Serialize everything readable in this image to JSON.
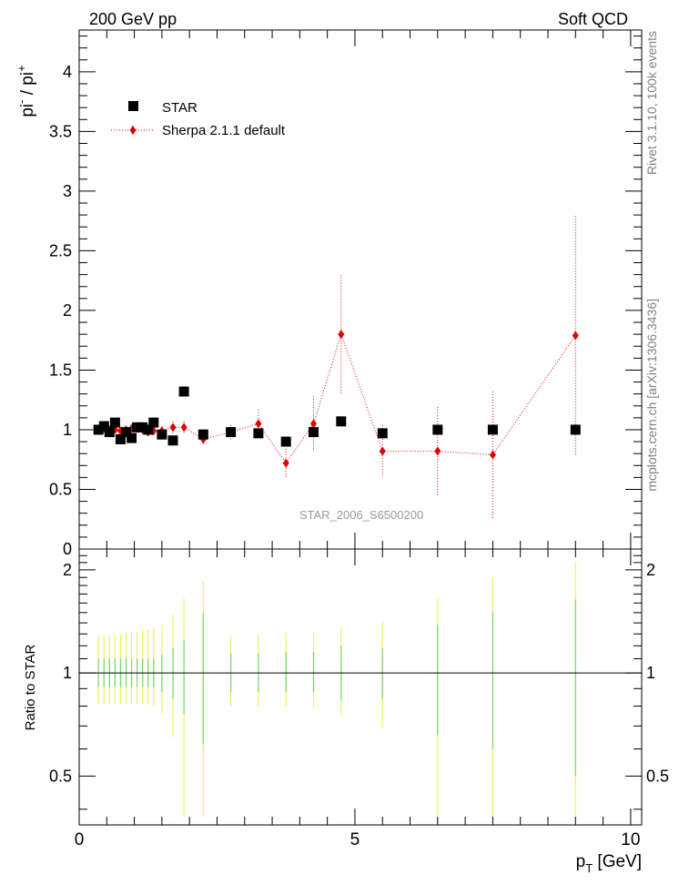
{
  "header": {
    "left": "200 GeV pp",
    "right": "Soft QCD"
  },
  "side_labels": {
    "rivet": "Rivet 3.1.10,  100k events",
    "mcplots": "mcplots.cern.ch [arXiv:1306.3436]"
  },
  "analysis_label": "STAR_2006_S6500200",
  "chart_data": [
    {
      "type": "scatter",
      "title": "",
      "ylabel_main": "pi",
      "ylabel_sup1": "-",
      "ylabel_mid": " / pi",
      "ylabel_sup2": "+",
      "xlim": [
        0,
        10.2
      ],
      "ylim": [
        0,
        4.35
      ],
      "yticks": [
        0,
        0.5,
        1,
        1.5,
        2,
        2.5,
        3,
        3.5,
        4
      ],
      "ytick_labels": [
        "0",
        "0.5",
        "1",
        "1.5",
        "2",
        "2.5",
        "3",
        "3.5",
        "4"
      ],
      "legend": [
        {
          "name": "STAR",
          "marker": "square",
          "color": "#000000"
        },
        {
          "name": "Sherpa 2.1.1 default",
          "marker": "diamond",
          "color": "#e00000"
        }
      ],
      "series": [
        {
          "name": "STAR",
          "x": [
            0.35,
            0.45,
            0.55,
            0.65,
            0.75,
            0.85,
            0.95,
            1.05,
            1.15,
            1.25,
            1.35,
            1.5,
            1.7,
            1.9,
            2.25,
            2.75,
            3.25,
            3.75,
            4.25,
            4.75,
            5.5,
            6.5,
            7.5,
            9.0
          ],
          "values": [
            1.0,
            1.03,
            0.98,
            1.06,
            0.92,
            0.98,
            0.93,
            1.02,
            1.02,
            1.0,
            1.06,
            0.96,
            0.91,
            1.32,
            0.96,
            0.98,
            0.97,
            0.9,
            0.98,
            1.07,
            0.97,
            1.0,
            1.0,
            1.0
          ]
        },
        {
          "name": "Sherpa 2.1.1 default",
          "x": [
            0.35,
            0.45,
            0.55,
            0.65,
            0.75,
            0.85,
            0.95,
            1.05,
            1.15,
            1.25,
            1.35,
            1.5,
            1.7,
            1.9,
            2.25,
            2.75,
            3.25,
            3.75,
            4.25,
            4.75,
            5.5,
            6.5,
            7.5,
            9.0
          ],
          "values": [
            1.0,
            1.01,
            1.0,
            1.0,
            0.99,
            1.0,
            1.01,
            1.01,
            1.0,
            0.98,
            0.99,
            0.99,
            1.02,
            1.02,
            0.92,
            0.98,
            1.05,
            0.72,
            1.05,
            1.8,
            0.82,
            0.82,
            0.79,
            1.79
          ],
          "errors": [
            0.02,
            0.02,
            0.02,
            0.02,
            0.02,
            0.02,
            0.03,
            0.03,
            0.03,
            0.03,
            0.04,
            0.04,
            0.05,
            0.05,
            0.04,
            0.06,
            0.12,
            0.12,
            0.23,
            0.5,
            0.22,
            0.37,
            0.53,
            1.0
          ]
        }
      ]
    },
    {
      "type": "scatter",
      "title": "",
      "xlabel": "p",
      "xlabel_sub": "T",
      "xlabel_unit": " [GeV]",
      "ylabel": "Ratio to STAR",
      "xlim": [
        0,
        10.2
      ],
      "ylim": [
        0.36,
        2.3
      ],
      "xticks": [
        0,
        5,
        10
      ],
      "xtick_labels": [
        "0",
        "5",
        "10"
      ],
      "yticks": [
        0.5,
        1,
        2
      ],
      "ytick_labels": [
        "0.5",
        "1",
        "2"
      ],
      "reference_line": 1,
      "series": [
        {
          "name": "STAR uncertainty (green)",
          "x": [
            0.35,
            0.45,
            0.55,
            0.65,
            0.75,
            0.85,
            0.95,
            1.05,
            1.15,
            1.25,
            1.35,
            1.5,
            1.7,
            1.9,
            2.25,
            2.75,
            3.25,
            3.75,
            4.25,
            4.75,
            5.5,
            6.5,
            7.5,
            9.0
          ],
          "low": [
            0.91,
            0.91,
            0.91,
            0.91,
            0.91,
            0.91,
            0.91,
            0.91,
            0.91,
            0.91,
            0.91,
            0.88,
            0.84,
            0.76,
            0.62,
            0.88,
            0.88,
            0.88,
            0.88,
            0.83,
            0.84,
            0.66,
            0.6,
            0.5
          ],
          "high": [
            1.1,
            1.1,
            1.1,
            1.1,
            1.1,
            1.1,
            1.1,
            1.1,
            1.1,
            1.1,
            1.1,
            1.13,
            1.18,
            1.25,
            1.5,
            1.14,
            1.14,
            1.15,
            1.15,
            1.2,
            1.18,
            1.38,
            1.51,
            1.64
          ]
        },
        {
          "name": "STAR uncertainty (yellow)",
          "x": [
            0.35,
            0.45,
            0.55,
            0.65,
            0.75,
            0.85,
            0.95,
            1.05,
            1.15,
            1.25,
            1.35,
            1.5,
            1.7,
            1.9,
            2.25,
            2.75,
            3.25,
            3.75,
            4.25,
            4.75,
            5.5,
            6.5,
            7.5,
            9.0
          ],
          "low": [
            0.81,
            0.81,
            0.81,
            0.81,
            0.81,
            0.81,
            0.81,
            0.81,
            0.81,
            0.81,
            0.8,
            0.76,
            0.65,
            0.38,
            0.38,
            0.8,
            0.8,
            0.8,
            0.79,
            0.76,
            0.7,
            0.38,
            0.38,
            0.38
          ],
          "high": [
            1.29,
            1.29,
            1.29,
            1.3,
            1.3,
            1.31,
            1.31,
            1.32,
            1.33,
            1.34,
            1.35,
            1.38,
            1.48,
            1.65,
            1.85,
            1.29,
            1.3,
            1.31,
            1.32,
            1.35,
            1.41,
            1.65,
            1.9,
            2.1
          ]
        }
      ]
    }
  ]
}
